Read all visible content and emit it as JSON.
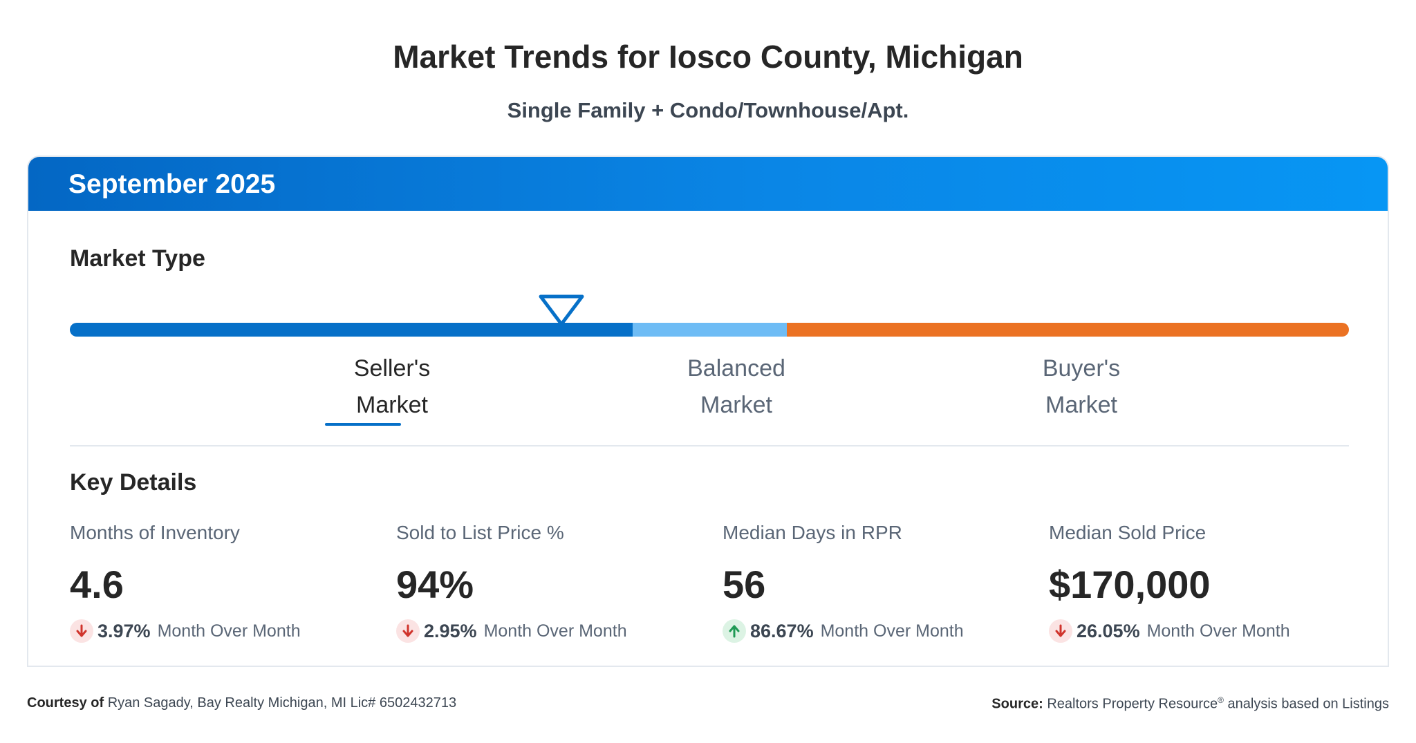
{
  "header": {
    "title": "Market Trends for Iosco County, Michigan",
    "subtitle": "Single Family + Condo/Townhouse/Apt."
  },
  "card": {
    "period": "September 2025",
    "market_type": {
      "title": "Market Type",
      "labels": [
        {
          "line1": "Seller's",
          "line2": "Market"
        },
        {
          "line1": "Balanced",
          "line2": "Market"
        },
        {
          "line1": "Buyer's",
          "line2": "Market"
        }
      ],
      "selected": "Seller's Market",
      "colors": {
        "seller": "#0670c8",
        "balanced": "#6ebcf5",
        "buyer": "#eb7223"
      }
    },
    "key_details": {
      "title": "Key Details",
      "metrics": [
        {
          "label": "Months of Inventory",
          "value": "4.6",
          "change": "3.97%",
          "direction": "down",
          "change_text": "Month Over Month"
        },
        {
          "label": "Sold to List Price %",
          "value": "94%",
          "change": "2.95%",
          "direction": "down",
          "change_text": "Month Over Month"
        },
        {
          "label": "Median Days in RPR",
          "value": "56",
          "change": "86.67%",
          "direction": "up",
          "change_text": "Month Over Month"
        },
        {
          "label": "Median Sold Price",
          "value": "$170,000",
          "change": "26.05%",
          "direction": "down",
          "change_text": "Month Over Month"
        }
      ]
    }
  },
  "footer": {
    "courtesy_label": "Courtesy of",
    "courtesy_text": "Ryan Sagady, Bay Realty Michigan, MI Lic# 6502432713",
    "source_label": "Source:",
    "source_text_1": "Realtors Property Resource",
    "source_sup": "®",
    "source_text_2": " analysis based on Listings"
  }
}
